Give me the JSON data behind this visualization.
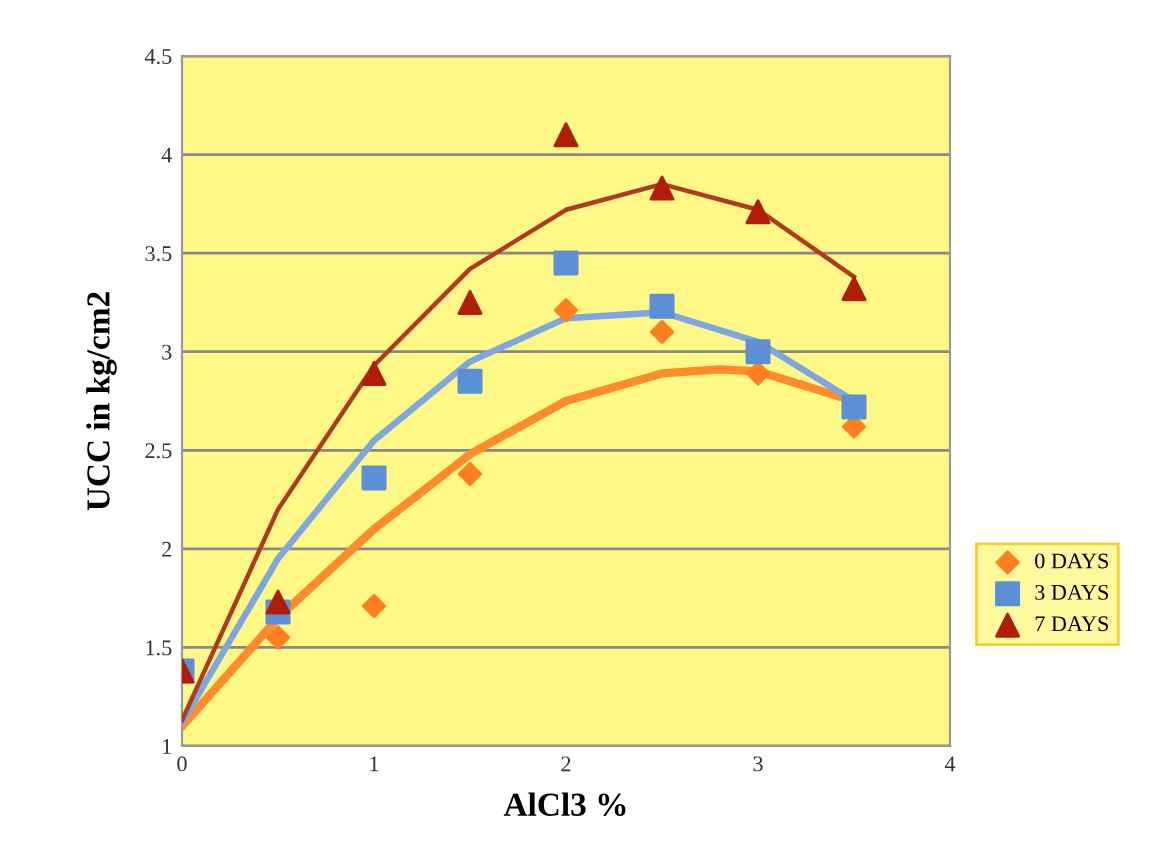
{
  "chart_data": {
    "type": "scatter",
    "xlabel": "AlCl3 %",
    "ylabel": "UCC in kg/cm2",
    "x": [
      0,
      0.5,
      1,
      1.5,
      2,
      2.5,
      3,
      3.5
    ],
    "xlim": [
      0,
      4
    ],
    "xticks": [
      0,
      1,
      2,
      3,
      4
    ],
    "ylim": [
      1,
      4.5
    ],
    "yticks": [
      1,
      1.5,
      2,
      2.5,
      3,
      3.5,
      4,
      4.5
    ],
    "grid": "y",
    "legend": "right",
    "series": [
      {
        "name": "0 DAYS",
        "color": "#ff7f1e",
        "marker": "diamond",
        "values": [
          null,
          1.55,
          1.71,
          2.38,
          3.21,
          3.1,
          2.89,
          2.62
        ]
      },
      {
        "name": "3 DAYS",
        "color": "#5b8fd6",
        "marker": "square",
        "values": [
          1.38,
          1.68,
          2.36,
          2.85,
          3.45,
          3.23,
          3.0,
          2.72
        ]
      },
      {
        "name": "7 DAYS",
        "color": "#b01e0a",
        "marker": "triangle",
        "values": [
          1.38,
          1.73,
          2.89,
          3.25,
          4.1,
          3.83,
          3.71,
          3.32
        ]
      },
      {
        "type": "line",
        "color": "#ff8c2a",
        "marker": "none",
        "x": [
          0,
          0.5,
          1,
          1.5,
          2,
          2.5,
          2.8,
          3,
          3.5
        ],
        "values": [
          1.1,
          1.65,
          2.1,
          2.48,
          2.75,
          2.89,
          2.91,
          2.9,
          2.75
        ]
      },
      {
        "type": "line",
        "color": "#7ea6e0",
        "marker": "none",
        "x": [
          0,
          0.5,
          1,
          1.5,
          2,
          2.5,
          3,
          3.5
        ],
        "values": [
          1.12,
          1.95,
          2.55,
          2.95,
          3.17,
          3.2,
          3.05,
          2.75
        ]
      },
      {
        "type": "line",
        "color": "#b03a1e",
        "marker": "none",
        "x": [
          0,
          0.5,
          1,
          1.5,
          2,
          2.5,
          3,
          3.5
        ],
        "values": [
          1.13,
          2.2,
          2.93,
          3.42,
          3.72,
          3.85,
          3.72,
          3.38
        ]
      }
    ]
  }
}
